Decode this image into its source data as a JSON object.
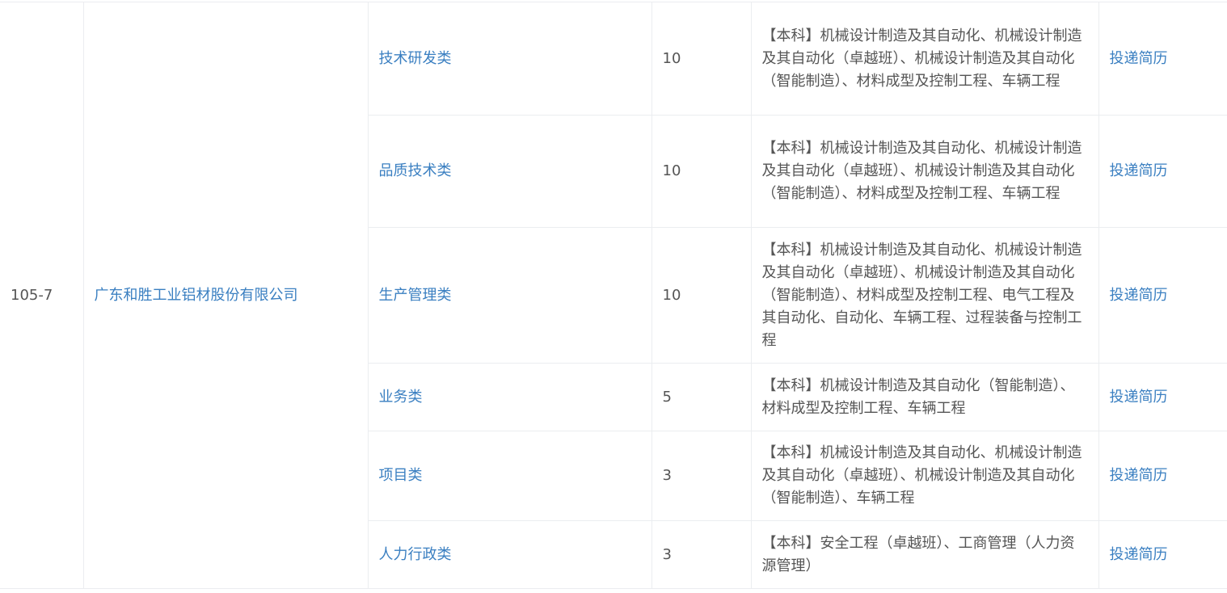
{
  "group": {
    "code": "105-7",
    "company": "广东和胜工业铝材股份有限公司"
  },
  "apply_label": "投递简历",
  "colors": {
    "link": "#3a7fc1",
    "text": "#555555",
    "border": "#ebedf0"
  },
  "rows": [
    {
      "position": "技术研发类",
      "count": "10",
      "majors": "【本科】机械设计制造及其自动化、机械设计制造及其自动化（卓越班）、机械设计制造及其自动化（智能制造）、材料成型及控制工程、车辆工程"
    },
    {
      "position": "品质技术类",
      "count": "10",
      "majors": "【本科】机械设计制造及其自动化、机械设计制造及其自动化（卓越班）、机械设计制造及其自动化（智能制造）、材料成型及控制工程、车辆工程"
    },
    {
      "position": "生产管理类",
      "count": "10",
      "majors": "【本科】机械设计制造及其自动化、机械设计制造及其自动化（卓越班）、机械设计制造及其自动化（智能制造）、材料成型及控制工程、电气工程及其自动化、自动化、车辆工程、过程装备与控制工程"
    },
    {
      "position": "业务类",
      "count": "5",
      "majors": "【本科】机械设计制造及其自动化（智能制造）、材料成型及控制工程、车辆工程"
    },
    {
      "position": "项目类",
      "count": "3",
      "majors": "【本科】机械设计制造及其自动化、机械设计制造及其自动化（卓越班）、机械设计制造及其自动化（智能制造）、车辆工程"
    },
    {
      "position": "人力行政类",
      "count": "3",
      "majors": "【本科】安全工程（卓越班）、工商管理（人力资源管理）"
    }
  ]
}
